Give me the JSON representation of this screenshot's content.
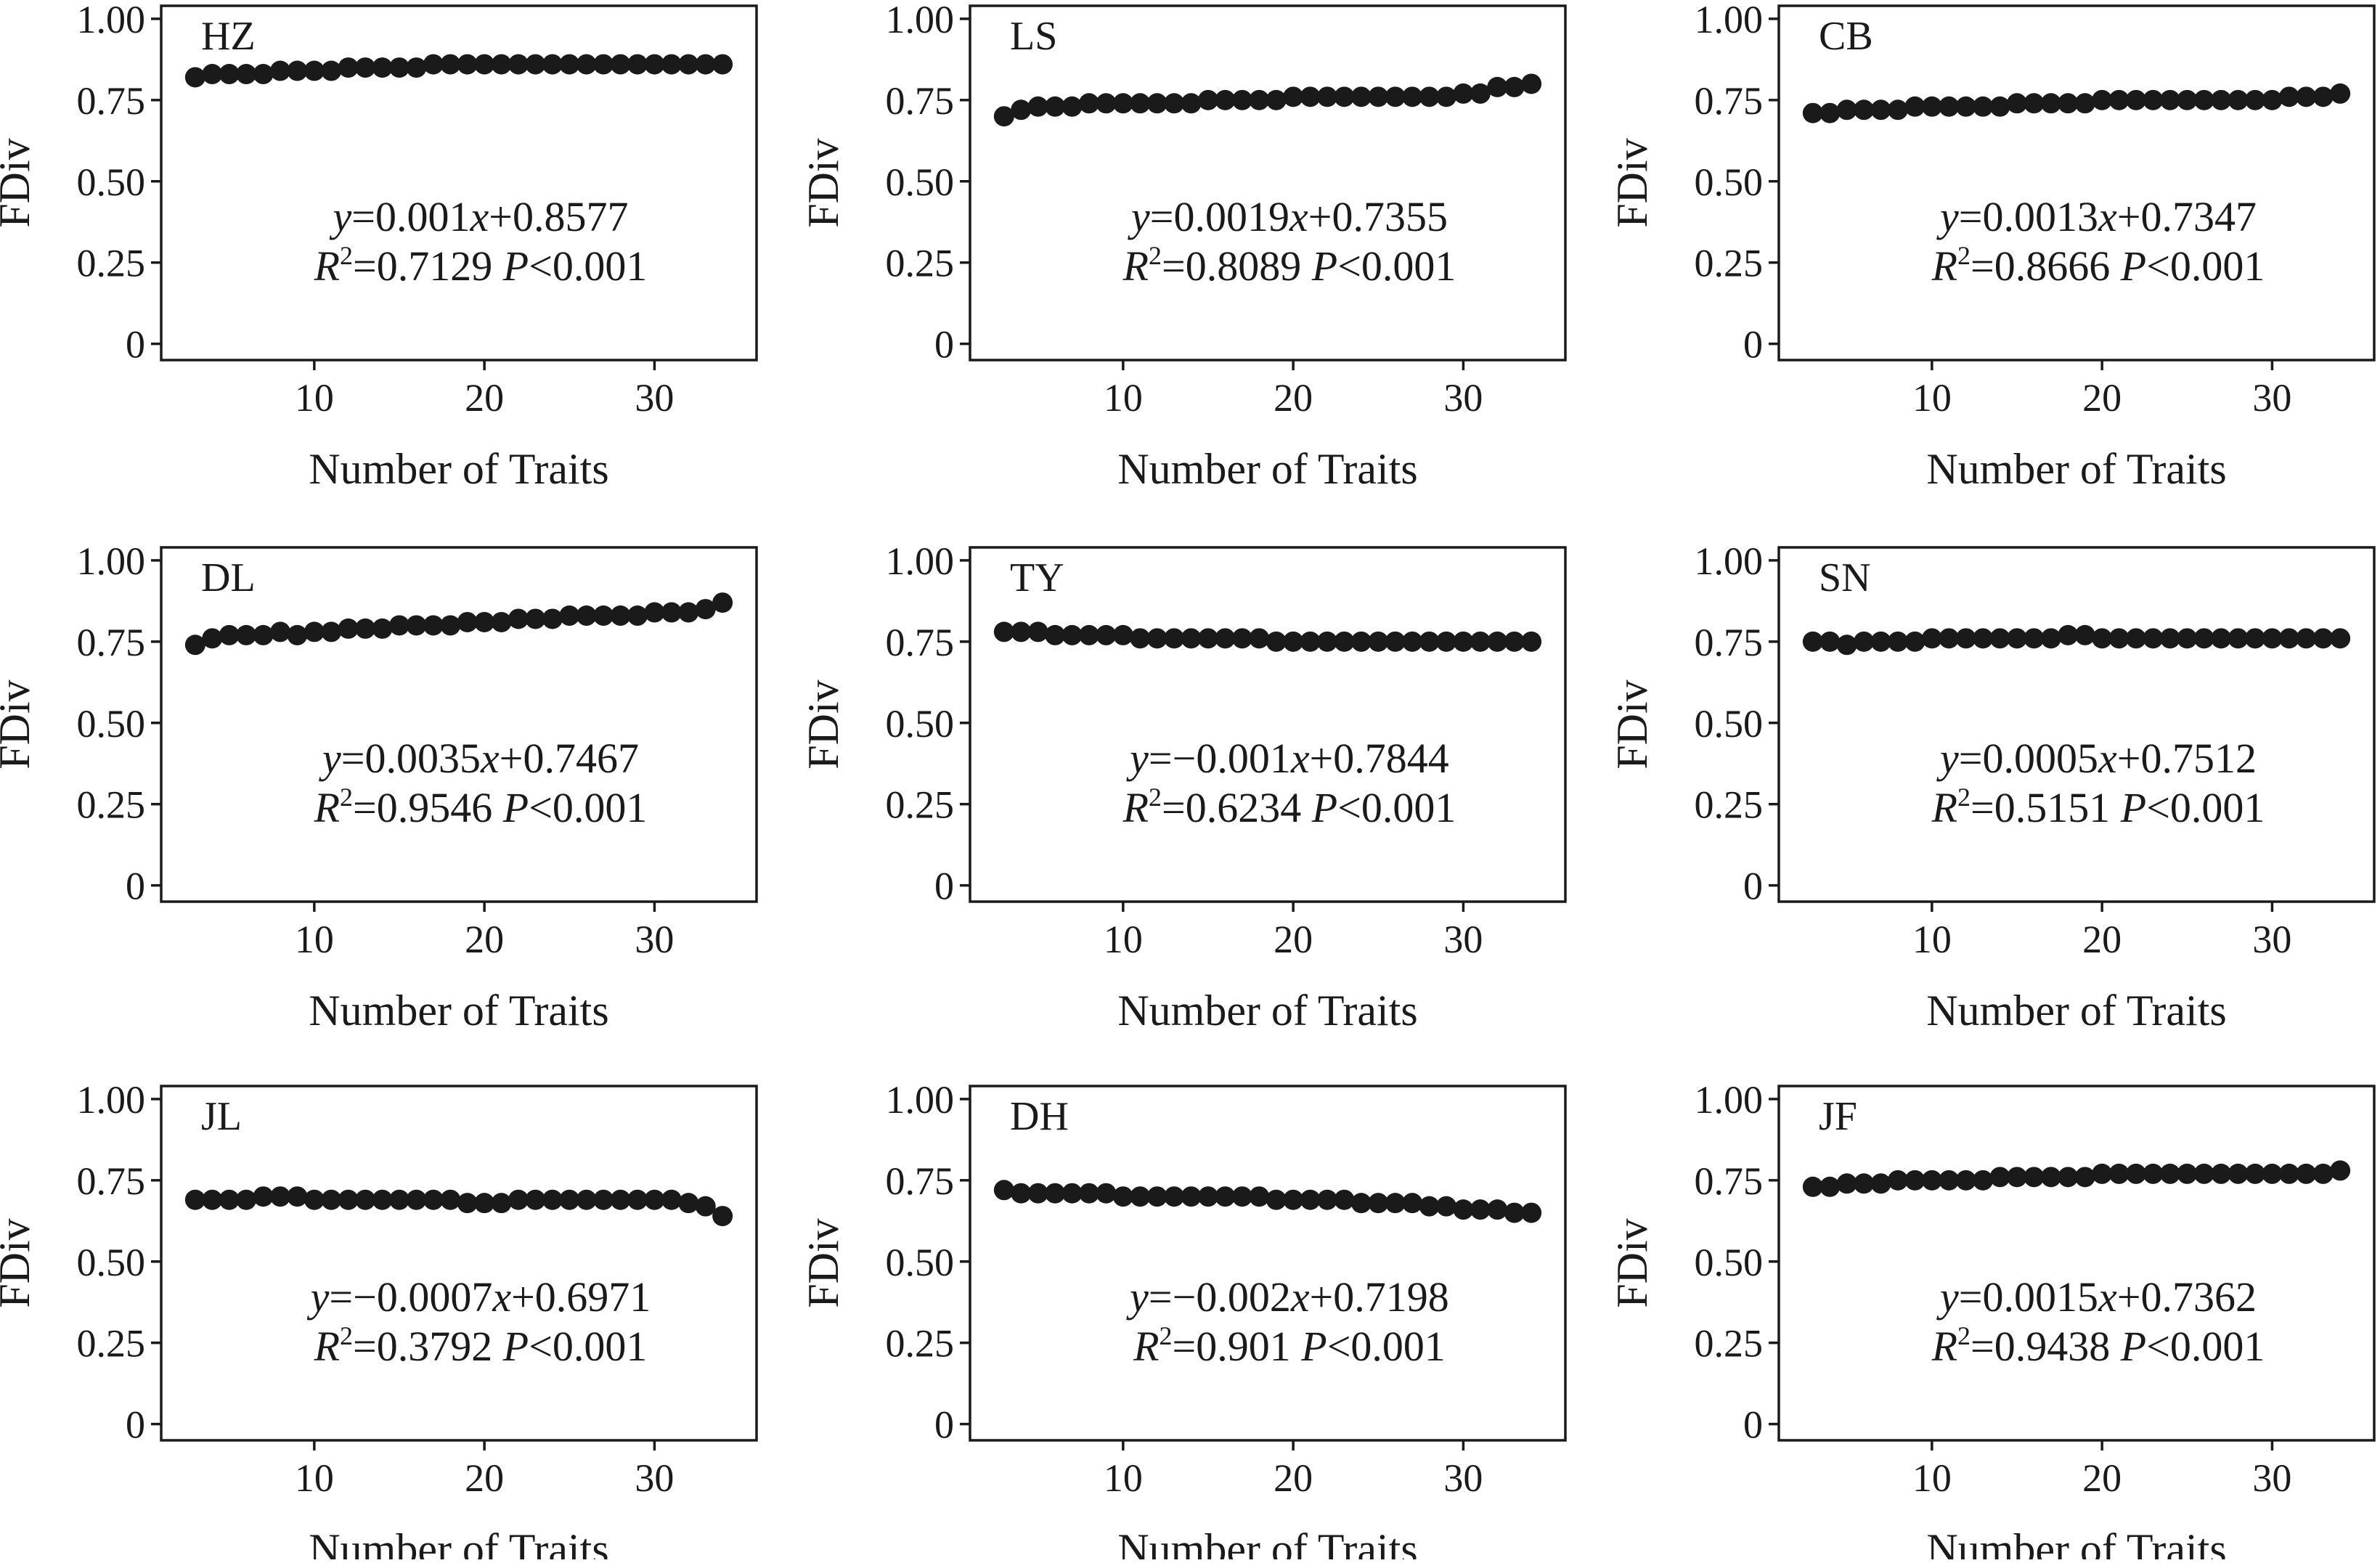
{
  "chart_data": [
    {
      "type": "scatter",
      "panel_label": "HZ",
      "xlabel": "Number of Traits",
      "ylabel": "FDiv",
      "xticks": [
        10,
        20,
        30
      ],
      "yticks": [
        "0",
        "0.25",
        "0.50",
        "0.75",
        "1.00"
      ],
      "xlim": [
        1,
        36
      ],
      "ylim": [
        -0.05,
        1.04
      ],
      "equation": {
        "slope": "0.001",
        "intercept": "+0.8577",
        "r2": "0.7129",
        "p": "<0.001"
      },
      "x": [
        3,
        4,
        5,
        6,
        7,
        8,
        9,
        10,
        11,
        12,
        13,
        14,
        15,
        16,
        17,
        18,
        19,
        20,
        21,
        22,
        23,
        24,
        25,
        26,
        27,
        28,
        29,
        30,
        31,
        32,
        33,
        34
      ],
      "y": [
        0.82,
        0.83,
        0.83,
        0.83,
        0.83,
        0.84,
        0.84,
        0.84,
        0.84,
        0.85,
        0.85,
        0.85,
        0.85,
        0.85,
        0.86,
        0.86,
        0.86,
        0.86,
        0.86,
        0.86,
        0.86,
        0.86,
        0.86,
        0.86,
        0.86,
        0.86,
        0.86,
        0.86,
        0.86,
        0.86,
        0.86,
        0.86
      ]
    },
    {
      "type": "scatter",
      "panel_label": "LS",
      "xlabel": "Number of Traits",
      "ylabel": "FDiv",
      "xticks": [
        10,
        20,
        30
      ],
      "yticks": [
        "0",
        "0.25",
        "0.50",
        "0.75",
        "1.00"
      ],
      "xlim": [
        1,
        36
      ],
      "ylim": [
        -0.05,
        1.04
      ],
      "equation": {
        "slope": "0.0019",
        "intercept": "+0.7355",
        "r2": "0.8089",
        "p": "<0.001"
      },
      "x": [
        3,
        4,
        5,
        6,
        7,
        8,
        9,
        10,
        11,
        12,
        13,
        14,
        15,
        16,
        17,
        18,
        19,
        20,
        21,
        22,
        23,
        24,
        25,
        26,
        27,
        28,
        29,
        30,
        31,
        32,
        33,
        34
      ],
      "y": [
        0.7,
        0.72,
        0.73,
        0.73,
        0.73,
        0.74,
        0.74,
        0.74,
        0.74,
        0.74,
        0.74,
        0.74,
        0.75,
        0.75,
        0.75,
        0.75,
        0.75,
        0.76,
        0.76,
        0.76,
        0.76,
        0.76,
        0.76,
        0.76,
        0.76,
        0.76,
        0.76,
        0.77,
        0.77,
        0.79,
        0.79,
        0.8
      ]
    },
    {
      "type": "scatter",
      "panel_label": "CB",
      "xlabel": "Number of Traits",
      "ylabel": "FDiv",
      "xticks": [
        10,
        20,
        30
      ],
      "yticks": [
        "0",
        "0.25",
        "0.50",
        "0.75",
        "1.00"
      ],
      "xlim": [
        1,
        36
      ],
      "ylim": [
        -0.05,
        1.04
      ],
      "equation": {
        "slope": "0.0013",
        "intercept": "+0.7347",
        "r2": "0.8666",
        "p": "<0.001"
      },
      "x": [
        3,
        4,
        5,
        6,
        7,
        8,
        9,
        10,
        11,
        12,
        13,
        14,
        15,
        16,
        17,
        18,
        19,
        20,
        21,
        22,
        23,
        24,
        25,
        26,
        27,
        28,
        29,
        30,
        31,
        32,
        33,
        34
      ],
      "y": [
        0.71,
        0.71,
        0.72,
        0.72,
        0.72,
        0.72,
        0.73,
        0.73,
        0.73,
        0.73,
        0.73,
        0.73,
        0.74,
        0.74,
        0.74,
        0.74,
        0.74,
        0.75,
        0.75,
        0.75,
        0.75,
        0.75,
        0.75,
        0.75,
        0.75,
        0.75,
        0.75,
        0.75,
        0.76,
        0.76,
        0.76,
        0.77
      ]
    },
    {
      "type": "scatter",
      "panel_label": "DL",
      "xlabel": "Number of Traits",
      "ylabel": "FDiv",
      "xticks": [
        10,
        20,
        30
      ],
      "yticks": [
        "0",
        "0.25",
        "0.50",
        "0.75",
        "1.00"
      ],
      "xlim": [
        1,
        36
      ],
      "ylim": [
        -0.05,
        1.04
      ],
      "equation": {
        "slope": "0.0035",
        "intercept": "+0.7467",
        "r2": "0.9546",
        "p": "<0.001"
      },
      "x": [
        3,
        4,
        5,
        6,
        7,
        8,
        9,
        10,
        11,
        12,
        13,
        14,
        15,
        16,
        17,
        18,
        19,
        20,
        21,
        22,
        23,
        24,
        25,
        26,
        27,
        28,
        29,
        30,
        31,
        32,
        33,
        34
      ],
      "y": [
        0.74,
        0.76,
        0.77,
        0.77,
        0.77,
        0.78,
        0.77,
        0.78,
        0.78,
        0.79,
        0.79,
        0.79,
        0.8,
        0.8,
        0.8,
        0.8,
        0.81,
        0.81,
        0.81,
        0.82,
        0.82,
        0.82,
        0.83,
        0.83,
        0.83,
        0.83,
        0.83,
        0.84,
        0.84,
        0.84,
        0.85,
        0.87
      ]
    },
    {
      "type": "scatter",
      "panel_label": "TY",
      "xlabel": "Number of Traits",
      "ylabel": "FDiv",
      "xticks": [
        10,
        20,
        30
      ],
      "yticks": [
        "0",
        "0.25",
        "0.50",
        "0.75",
        "1.00"
      ],
      "xlim": [
        1,
        36
      ],
      "ylim": [
        -0.05,
        1.04
      ],
      "equation": {
        "slope": "−0.001",
        "intercept": "+0.7844",
        "r2": "0.6234",
        "p": "<0.001"
      },
      "x": [
        3,
        4,
        5,
        6,
        7,
        8,
        9,
        10,
        11,
        12,
        13,
        14,
        15,
        16,
        17,
        18,
        19,
        20,
        21,
        22,
        23,
        24,
        25,
        26,
        27,
        28,
        29,
        30,
        31,
        32,
        33,
        34
      ],
      "y": [
        0.78,
        0.78,
        0.78,
        0.77,
        0.77,
        0.77,
        0.77,
        0.77,
        0.76,
        0.76,
        0.76,
        0.76,
        0.76,
        0.76,
        0.76,
        0.76,
        0.75,
        0.75,
        0.75,
        0.75,
        0.75,
        0.75,
        0.75,
        0.75,
        0.75,
        0.75,
        0.75,
        0.75,
        0.75,
        0.75,
        0.75,
        0.75
      ]
    },
    {
      "type": "scatter",
      "panel_label": "SN",
      "xlabel": "Number of Traits",
      "ylabel": "FDiv",
      "xticks": [
        10,
        20,
        30
      ],
      "yticks": [
        "0",
        "0.25",
        "0.50",
        "0.75",
        "1.00"
      ],
      "xlim": [
        1,
        36
      ],
      "ylim": [
        -0.05,
        1.04
      ],
      "equation": {
        "slope": "0.0005",
        "intercept": "+0.7512",
        "r2": "0.5151",
        "p": "<0.001"
      },
      "x": [
        3,
        4,
        5,
        6,
        7,
        8,
        9,
        10,
        11,
        12,
        13,
        14,
        15,
        16,
        17,
        18,
        19,
        20,
        21,
        22,
        23,
        24,
        25,
        26,
        27,
        28,
        29,
        30,
        31,
        32,
        33,
        34
      ],
      "y": [
        0.75,
        0.75,
        0.74,
        0.75,
        0.75,
        0.75,
        0.75,
        0.76,
        0.76,
        0.76,
        0.76,
        0.76,
        0.76,
        0.76,
        0.76,
        0.77,
        0.77,
        0.76,
        0.76,
        0.76,
        0.76,
        0.76,
        0.76,
        0.76,
        0.76,
        0.76,
        0.76,
        0.76,
        0.76,
        0.76,
        0.76,
        0.76
      ]
    },
    {
      "type": "scatter",
      "panel_label": "JL",
      "xlabel": "Number of Traits",
      "ylabel": "FDiv",
      "xticks": [
        10,
        20,
        30
      ],
      "yticks": [
        "0",
        "0.25",
        "0.50",
        "0.75",
        "1.00"
      ],
      "xlim": [
        1,
        36
      ],
      "ylim": [
        -0.05,
        1.04
      ],
      "equation": {
        "slope": "−0.0007",
        "intercept": "+0.6971",
        "r2": "0.3792",
        "p": "<0.001"
      },
      "x": [
        3,
        4,
        5,
        6,
        7,
        8,
        9,
        10,
        11,
        12,
        13,
        14,
        15,
        16,
        17,
        18,
        19,
        20,
        21,
        22,
        23,
        24,
        25,
        26,
        27,
        28,
        29,
        30,
        31,
        32,
        33,
        34
      ],
      "y": [
        0.69,
        0.69,
        0.69,
        0.69,
        0.7,
        0.7,
        0.7,
        0.69,
        0.69,
        0.69,
        0.69,
        0.69,
        0.69,
        0.69,
        0.69,
        0.69,
        0.68,
        0.68,
        0.68,
        0.69,
        0.69,
        0.69,
        0.69,
        0.69,
        0.69,
        0.69,
        0.69,
        0.69,
        0.69,
        0.68,
        0.67,
        0.64
      ]
    },
    {
      "type": "scatter",
      "panel_label": "DH",
      "xlabel": "Number of Traits",
      "ylabel": "FDiv",
      "xticks": [
        10,
        20,
        30
      ],
      "yticks": [
        "0",
        "0.25",
        "0.50",
        "0.75",
        "1.00"
      ],
      "xlim": [
        1,
        36
      ],
      "ylim": [
        -0.05,
        1.04
      ],
      "equation": {
        "slope": "−0.002",
        "intercept": "+0.7198",
        "r2": "0.901",
        "p": "<0.001"
      },
      "x": [
        3,
        4,
        5,
        6,
        7,
        8,
        9,
        10,
        11,
        12,
        13,
        14,
        15,
        16,
        17,
        18,
        19,
        20,
        21,
        22,
        23,
        24,
        25,
        26,
        27,
        28,
        29,
        30,
        31,
        32,
        33,
        34
      ],
      "y": [
        0.72,
        0.71,
        0.71,
        0.71,
        0.71,
        0.71,
        0.71,
        0.7,
        0.7,
        0.7,
        0.7,
        0.7,
        0.7,
        0.7,
        0.7,
        0.7,
        0.69,
        0.69,
        0.69,
        0.69,
        0.69,
        0.68,
        0.68,
        0.68,
        0.68,
        0.67,
        0.67,
        0.66,
        0.66,
        0.66,
        0.65,
        0.65
      ]
    },
    {
      "type": "scatter",
      "panel_label": "JF",
      "xlabel": "Number of Traits",
      "ylabel": "FDiv",
      "xticks": [
        10,
        20,
        30
      ],
      "yticks": [
        "0",
        "0.25",
        "0.50",
        "0.75",
        "1.00"
      ],
      "xlim": [
        1,
        36
      ],
      "ylim": [
        -0.05,
        1.04
      ],
      "equation": {
        "slope": "0.0015",
        "intercept": "+0.7362",
        "r2": "0.9438",
        "p": "<0.001"
      },
      "x": [
        3,
        4,
        5,
        6,
        7,
        8,
        9,
        10,
        11,
        12,
        13,
        14,
        15,
        16,
        17,
        18,
        19,
        20,
        21,
        22,
        23,
        24,
        25,
        26,
        27,
        28,
        29,
        30,
        31,
        32,
        33,
        34
      ],
      "y": [
        0.73,
        0.73,
        0.74,
        0.74,
        0.74,
        0.75,
        0.75,
        0.75,
        0.75,
        0.75,
        0.75,
        0.76,
        0.76,
        0.76,
        0.76,
        0.76,
        0.76,
        0.77,
        0.77,
        0.77,
        0.77,
        0.77,
        0.77,
        0.77,
        0.77,
        0.77,
        0.77,
        0.77,
        0.77,
        0.77,
        0.77,
        0.78
      ]
    }
  ]
}
